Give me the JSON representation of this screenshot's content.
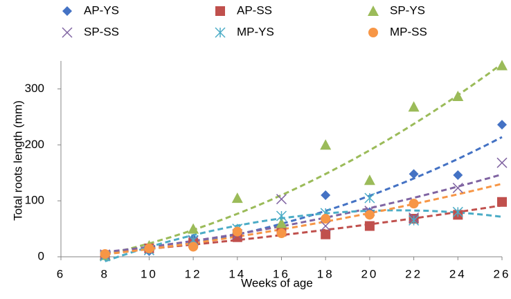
{
  "chart_data": {
    "type": "scatter",
    "x_label": "Weeks of age",
    "y_label": "Total roots length (mm)",
    "x": [
      8,
      10,
      12,
      14,
      16,
      18,
      20,
      22,
      24,
      26
    ],
    "xlim": [
      6,
      26
    ],
    "xticks": [
      6,
      8,
      10,
      12,
      14,
      16,
      18,
      20,
      22,
      24,
      26
    ],
    "ylim": [
      0,
      350
    ],
    "yticks": [
      0,
      100,
      200,
      300
    ],
    "trendline": "poly2",
    "series": [
      {
        "name": "AP-YS",
        "color": "#4472c4",
        "marker": "diamond",
        "values": [
          2,
          10,
          32,
          45,
          55,
          110,
          80,
          148,
          146,
          236
        ]
      },
      {
        "name": "AP-SS",
        "color": "#c0504d",
        "marker": "square",
        "values": [
          3,
          15,
          25,
          35,
          45,
          40,
          55,
          68,
          75,
          98
        ]
      },
      {
        "name": "SP-YS",
        "color": "#9bbb59",
        "marker": "triangle",
        "values": [
          3,
          20,
          50,
          105,
          60,
          200,
          137,
          268,
          287,
          342
        ]
      },
      {
        "name": "SP-SS",
        "color": "#8064a2",
        "marker": "x",
        "values": [
          4,
          12,
          28,
          40,
          103,
          55,
          82,
          70,
          123,
          168
        ]
      },
      {
        "name": "MP-YS",
        "color": "#4bacc6",
        "marker": "star",
        "values": [
          1,
          12,
          30,
          50,
          73,
          78,
          105,
          65,
          80,
          null
        ]
      },
      {
        "name": "MP-SS",
        "color": "#f79646",
        "marker": "circle",
        "values": [
          5,
          15,
          18,
          45,
          42,
          68,
          75,
          95,
          null,
          null
        ]
      }
    ]
  }
}
